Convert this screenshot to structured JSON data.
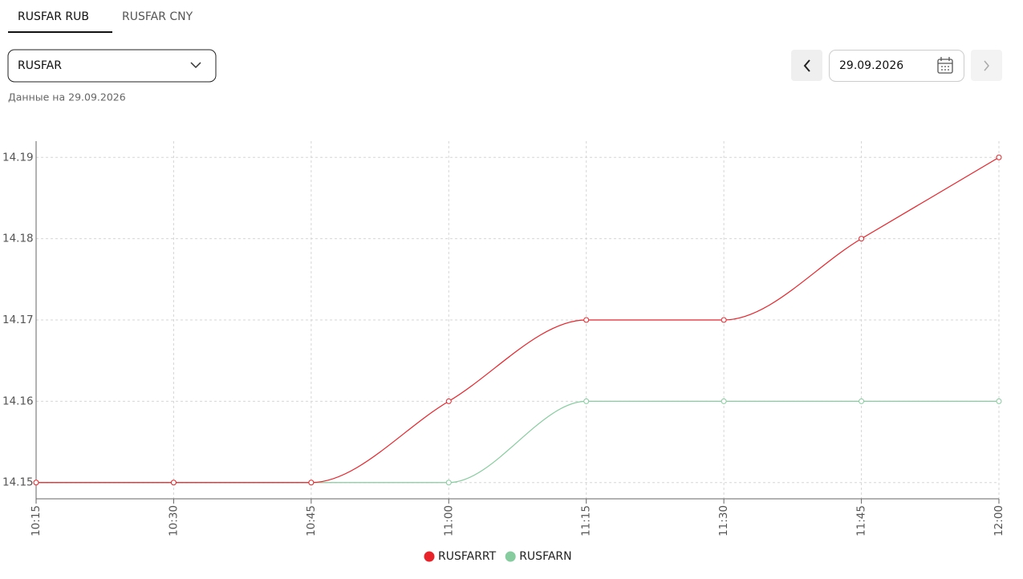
{
  "tabs": [
    "RUSFAR RUB",
    "RUSFAR CNY"
  ],
  "select": "RUSFAR",
  "date_input": "29.09.2026",
  "data_note": "Данные на 29.09.2026",
  "chart_data": {
    "type": "line",
    "categories": [
      "10:15",
      "10:30",
      "10:45",
      "11:00",
      "11:15",
      "11:30",
      "11:45",
      "12:00"
    ],
    "series": [
      {
        "name": "RUSFARRT",
        "color": "#e8232a",
        "values": [
          14.15,
          14.15,
          14.15,
          14.16,
          14.17,
          14.17,
          14.18,
          14.19
        ]
      },
      {
        "name": "RUSFARN",
        "color": "#86cc9e",
        "values": [
          14.15,
          14.15,
          14.15,
          14.15,
          14.16,
          14.16,
          14.16,
          14.16
        ]
      }
    ],
    "ylim": [
      14.148,
      14.192
    ],
    "yticks": [
      14.15,
      14.16,
      14.17,
      14.18,
      14.19
    ],
    "grid": true,
    "legend": "bottom"
  }
}
